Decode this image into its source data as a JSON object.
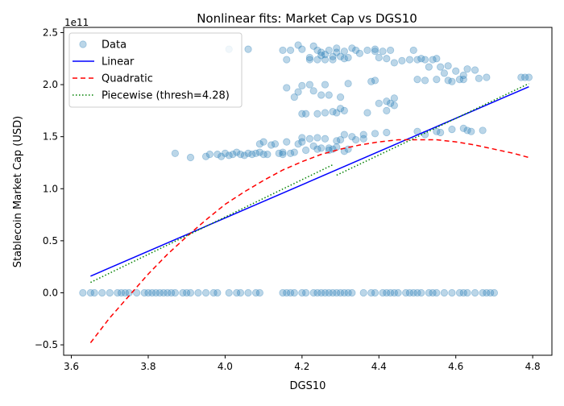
{
  "chart_data": {
    "type": "scatter",
    "title": "Nonlinear fits: Market Cap vs DGS10",
    "xlabel": "DGS10",
    "ylabel": "Stablecoin Market Cap (USD)",
    "y_offset_label": "1e11",
    "xlim": [
      3.58,
      4.85
    ],
    "ylim": [
      -0.6,
      2.55
    ],
    "y_unit_multiplier": 100000000000.0,
    "x_ticks": [
      "3.6",
      "3.8",
      "4.0",
      "4.2",
      "4.4",
      "4.6",
      "4.8"
    ],
    "y_ticks": [
      "−0.5",
      "0.0",
      "0.5",
      "1.0",
      "1.5",
      "2.0",
      "2.5"
    ],
    "grid": false,
    "legend_position": "upper-left",
    "legend": [
      "Data",
      "Linear",
      "Quadratic",
      "Piecewise (thresh=4.28)"
    ],
    "colors": {
      "data": "#1f77b4",
      "linear": "#0000ff",
      "quadratic": "#ff0000",
      "piecewise": "#008000"
    },
    "series": [
      {
        "name": "Data",
        "kind": "scatter",
        "points": [
          [
            3.63,
            0
          ],
          [
            3.65,
            0
          ],
          [
            3.66,
            0
          ],
          [
            3.68,
            0
          ],
          [
            3.7,
            0
          ],
          [
            3.72,
            0
          ],
          [
            3.73,
            0
          ],
          [
            3.74,
            0
          ],
          [
            3.75,
            0
          ],
          [
            3.77,
            0
          ],
          [
            3.79,
            0
          ],
          [
            3.8,
            0
          ],
          [
            3.81,
            0
          ],
          [
            3.82,
            0
          ],
          [
            3.83,
            0
          ],
          [
            3.84,
            0
          ],
          [
            3.85,
            0
          ],
          [
            3.86,
            0
          ],
          [
            3.87,
            0
          ],
          [
            3.89,
            0
          ],
          [
            3.9,
            0
          ],
          [
            3.91,
            0
          ],
          [
            3.93,
            0
          ],
          [
            3.95,
            0
          ],
          [
            3.97,
            0
          ],
          [
            3.98,
            0
          ],
          [
            4.01,
            0
          ],
          [
            4.03,
            0
          ],
          [
            4.04,
            0
          ],
          [
            4.06,
            0
          ],
          [
            4.08,
            0
          ],
          [
            4.09,
            0
          ],
          [
            4.15,
            0
          ],
          [
            4.16,
            0
          ],
          [
            4.17,
            0
          ],
          [
            4.18,
            0
          ],
          [
            4.2,
            0
          ],
          [
            4.21,
            0
          ],
          [
            4.23,
            0
          ],
          [
            4.24,
            0
          ],
          [
            4.25,
            0
          ],
          [
            4.26,
            0
          ],
          [
            4.27,
            0
          ],
          [
            4.28,
            0
          ],
          [
            4.29,
            0
          ],
          [
            4.3,
            0
          ],
          [
            4.31,
            0
          ],
          [
            4.32,
            0
          ],
          [
            4.33,
            0
          ],
          [
            4.36,
            0
          ],
          [
            4.38,
            0
          ],
          [
            4.39,
            0
          ],
          [
            4.41,
            0
          ],
          [
            4.42,
            0
          ],
          [
            4.43,
            0
          ],
          [
            4.44,
            0
          ],
          [
            4.45,
            0
          ],
          [
            4.47,
            0
          ],
          [
            4.48,
            0
          ],
          [
            4.49,
            0
          ],
          [
            4.5,
            0
          ],
          [
            4.51,
            0
          ],
          [
            4.53,
            0
          ],
          [
            4.54,
            0
          ],
          [
            4.55,
            0
          ],
          [
            4.57,
            0
          ],
          [
            4.59,
            0
          ],
          [
            4.61,
            0
          ],
          [
            4.62,
            0
          ],
          [
            4.63,
            0
          ],
          [
            4.65,
            0
          ],
          [
            4.67,
            0
          ],
          [
            4.68,
            0
          ],
          [
            4.69,
            0
          ],
          [
            4.7,
            0
          ],
          [
            3.87,
            1.34
          ],
          [
            3.91,
            1.3
          ],
          [
            3.95,
            1.31
          ],
          [
            3.96,
            1.33
          ],
          [
            3.98,
            1.33
          ],
          [
            3.99,
            1.31
          ],
          [
            4.0,
            1.34
          ],
          [
            4.01,
            1.32
          ],
          [
            4.02,
            1.33
          ],
          [
            4.03,
            1.35
          ],
          [
            4.04,
            1.33
          ],
          [
            4.05,
            1.32
          ],
          [
            4.06,
            1.34
          ],
          [
            4.07,
            1.33
          ],
          [
            4.08,
            1.34
          ],
          [
            4.09,
            1.35
          ],
          [
            4.09,
            1.43
          ],
          [
            4.1,
            1.45
          ],
          [
            4.1,
            1.33
          ],
          [
            4.11,
            1.33
          ],
          [
            4.12,
            1.42
          ],
          [
            4.13,
            1.43
          ],
          [
            4.14,
            1.34
          ],
          [
            4.15,
            1.33
          ],
          [
            4.15,
            1.35
          ],
          [
            4.16,
            1.45
          ],
          [
            4.17,
            1.34
          ],
          [
            4.18,
            1.35
          ],
          [
            4.19,
            1.43
          ],
          [
            4.2,
            1.49
          ],
          [
            4.2,
            1.45
          ],
          [
            4.21,
            1.37
          ],
          [
            4.22,
            1.48
          ],
          [
            4.23,
            1.41
          ],
          [
            4.24,
            1.49
          ],
          [
            4.24,
            1.38
          ],
          [
            4.25,
            1.39
          ],
          [
            4.26,
            1.48
          ],
          [
            4.27,
            1.39
          ],
          [
            4.27,
            1.37
          ],
          [
            4.28,
            1.38
          ],
          [
            4.29,
            1.46
          ],
          [
            4.29,
            1.4
          ],
          [
            4.3,
            1.47
          ],
          [
            4.31,
            1.36
          ],
          [
            4.31,
            1.52
          ],
          [
            4.32,
            1.38
          ],
          [
            4.33,
            1.5
          ],
          [
            4.34,
            1.47
          ],
          [
            4.36,
            1.52
          ],
          [
            4.36,
            1.48
          ],
          [
            4.39,
            1.53
          ],
          [
            4.42,
            1.54
          ],
          [
            4.16,
            1.97
          ],
          [
            4.18,
            1.88
          ],
          [
            4.19,
            1.93
          ],
          [
            4.2,
            1.99
          ],
          [
            4.2,
            1.72
          ],
          [
            4.21,
            1.72
          ],
          [
            4.22,
            2.0
          ],
          [
            4.23,
            1.94
          ],
          [
            4.24,
            1.72
          ],
          [
            4.25,
            1.9
          ],
          [
            4.26,
            1.73
          ],
          [
            4.26,
            2.0
          ],
          [
            4.27,
            1.9
          ],
          [
            4.28,
            1.74
          ],
          [
            4.29,
            1.73
          ],
          [
            4.3,
            1.88
          ],
          [
            4.3,
            1.77
          ],
          [
            4.31,
            1.75
          ],
          [
            4.32,
            2.01
          ],
          [
            4.37,
            1.73
          ],
          [
            4.38,
            2.03
          ],
          [
            4.39,
            2.04
          ],
          [
            4.4,
            1.82
          ],
          [
            4.42,
            1.84
          ],
          [
            4.42,
            1.75
          ],
          [
            4.43,
            1.82
          ],
          [
            4.44,
            1.8
          ],
          [
            4.44,
            1.87
          ],
          [
            4.01,
            2.34
          ],
          [
            4.06,
            2.34
          ],
          [
            4.15,
            2.33
          ],
          [
            4.16,
            2.24
          ],
          [
            4.17,
            2.33
          ],
          [
            4.19,
            2.38
          ],
          [
            4.2,
            2.34
          ],
          [
            4.22,
            2.24
          ],
          [
            4.22,
            2.26
          ],
          [
            4.23,
            2.37
          ],
          [
            4.24,
            2.33
          ],
          [
            4.24,
            2.24
          ],
          [
            4.25,
            2.28
          ],
          [
            4.25,
            2.31
          ],
          [
            4.26,
            2.24
          ],
          [
            4.26,
            2.29
          ],
          [
            4.27,
            2.33
          ],
          [
            4.28,
            2.27
          ],
          [
            4.28,
            2.24
          ],
          [
            4.29,
            2.35
          ],
          [
            4.29,
            2.31
          ],
          [
            4.3,
            2.27
          ],
          [
            4.31,
            2.25
          ],
          [
            4.31,
            2.32
          ],
          [
            4.32,
            2.26
          ],
          [
            4.33,
            2.35
          ],
          [
            4.34,
            2.33
          ],
          [
            4.35,
            2.3
          ],
          [
            4.37,
            2.33
          ],
          [
            4.39,
            2.32
          ],
          [
            4.39,
            2.34
          ],
          [
            4.4,
            2.26
          ],
          [
            4.41,
            2.32
          ],
          [
            4.42,
            2.25
          ],
          [
            4.43,
            2.33
          ],
          [
            4.44,
            2.21
          ],
          [
            4.46,
            2.23
          ],
          [
            4.48,
            2.24
          ],
          [
            4.49,
            2.33
          ],
          [
            4.5,
            2.24
          ],
          [
            4.51,
            2.25
          ],
          [
            4.52,
            2.24
          ],
          [
            4.53,
            2.17
          ],
          [
            4.54,
            2.24
          ],
          [
            4.55,
            2.25
          ],
          [
            4.56,
            2.17
          ],
          [
            4.57,
            2.11
          ],
          [
            4.58,
            2.18
          ],
          [
            4.59,
            2.03
          ],
          [
            4.6,
            2.13
          ],
          [
            4.61,
            2.05
          ],
          [
            4.62,
            2.09
          ],
          [
            4.63,
            2.15
          ],
          [
            4.65,
            2.14
          ],
          [
            4.66,
            2.06
          ],
          [
            4.68,
            2.07
          ],
          [
            4.77,
            2.07
          ],
          [
            4.78,
            2.07
          ],
          [
            4.79,
            2.07
          ],
          [
            4.5,
            2.05
          ],
          [
            4.52,
            2.04
          ],
          [
            4.55,
            2.05
          ],
          [
            4.58,
            2.04
          ],
          [
            4.62,
            2.05
          ],
          [
            4.5,
            1.55
          ],
          [
            4.52,
            1.52
          ],
          [
            4.55,
            1.55
          ],
          [
            4.56,
            1.54
          ],
          [
            4.59,
            1.57
          ],
          [
            4.62,
            1.58
          ],
          [
            4.63,
            1.56
          ],
          [
            4.64,
            1.55
          ],
          [
            4.67,
            1.56
          ]
        ]
      },
      {
        "name": "Linear",
        "kind": "line",
        "style": "solid",
        "x": [
          3.65,
          4.79
        ],
        "y": [
          0.16,
          1.98
        ]
      },
      {
        "name": "Quadratic",
        "kind": "line",
        "style": "dashed",
        "x": [
          3.65,
          3.7,
          3.75,
          3.8,
          3.85,
          3.9,
          3.95,
          4.0,
          4.05,
          4.1,
          4.15,
          4.2,
          4.25,
          4.3,
          4.35,
          4.4,
          4.45,
          4.5,
          4.55,
          4.6,
          4.65,
          4.7,
          4.75,
          4.79
        ],
        "y": [
          -0.48,
          -0.24,
          -0.03,
          0.18,
          0.37,
          0.54,
          0.7,
          0.85,
          0.97,
          1.08,
          1.18,
          1.26,
          1.33,
          1.38,
          1.42,
          1.45,
          1.47,
          1.47,
          1.47,
          1.45,
          1.42,
          1.38,
          1.34,
          1.3
        ]
      },
      {
        "name": "Piecewise (thresh=4.28)",
        "kind": "line",
        "style": "dotted",
        "segments": [
          {
            "x": [
              3.65,
              4.28
            ],
            "y": [
              0.1,
              1.23
            ]
          },
          {
            "x": [
              4.29,
              4.79
            ],
            "y": [
              1.13,
              2.01
            ]
          }
        ]
      }
    ]
  }
}
